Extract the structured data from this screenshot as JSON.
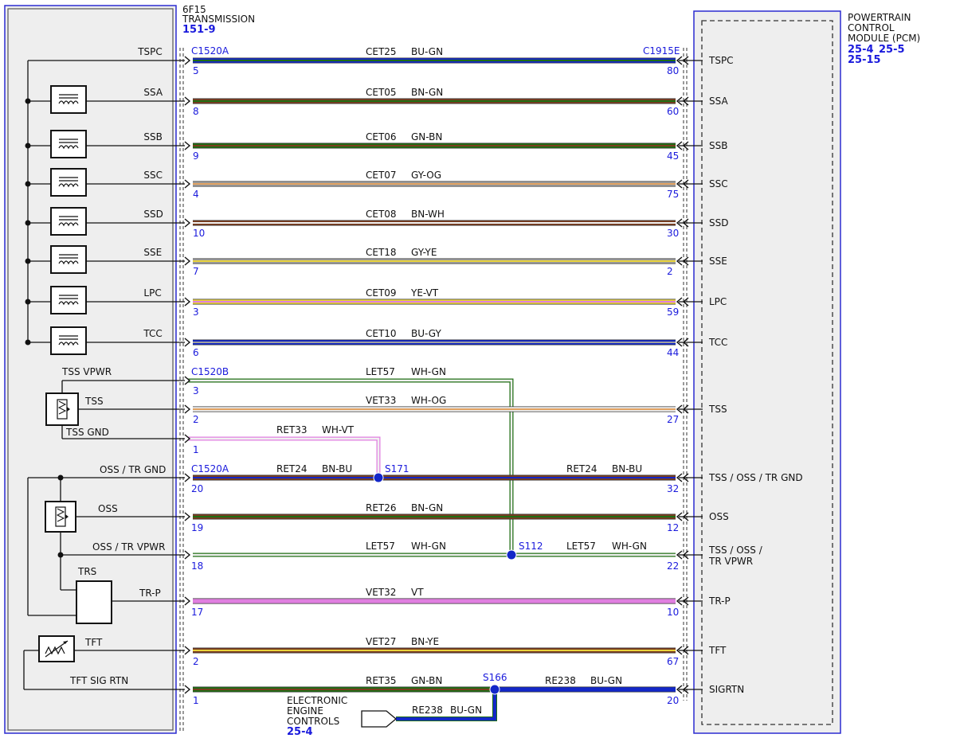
{
  "transmission": {
    "title": "6F15",
    "subtitle": "TRANSMISSION",
    "ref": "151-9"
  },
  "pcm": {
    "lines": [
      "POWERTRAIN",
      "CONTROL",
      "MODULE (PCM)"
    ],
    "refs": [
      "25-4",
      "25-5",
      "25-15"
    ]
  },
  "connectors": {
    "c1": "C1520A",
    "c2": "C1915E",
    "c3": "C1520B",
    "c4": "C1520A"
  },
  "colors": {
    "BU": "#1327c8",
    "BN": "#7a3d1f",
    "GN": "#1f6e13",
    "GY": "#a0a0a0",
    "OG": "#e0a060",
    "WH": "#f0f0f0",
    "YE": "#e8d23a",
    "VT": "#e07fe0",
    "RD": "#b02020",
    "blue_text": "#1a1adc"
  },
  "wires": [
    {
      "left_label": "TSPC",
      "circuit": "CET25",
      "color": "BU-GN",
      "pin_left": "5",
      "pin_right": "80",
      "right_label": "TSPC"
    },
    {
      "left_label": "SSA",
      "circuit": "CET05",
      "color": "BN-GN",
      "pin_left": "8",
      "pin_right": "60",
      "right_label": "SSA"
    },
    {
      "left_label": "SSB",
      "circuit": "CET06",
      "color": "GN-BN",
      "pin_left": "9",
      "pin_right": "45",
      "right_label": "SSB"
    },
    {
      "left_label": "SSC",
      "circuit": "CET07",
      "color": "GY-OG",
      "pin_left": "4",
      "pin_right": "75",
      "right_label": "SSC"
    },
    {
      "left_label": "SSD",
      "circuit": "CET08",
      "color": "BN-WH",
      "pin_left": "10",
      "pin_right": "30",
      "right_label": "SSD"
    },
    {
      "left_label": "SSE",
      "circuit": "CET18",
      "color": "GY-YE",
      "pin_left": "7",
      "pin_right": "2",
      "right_label": "SSE"
    },
    {
      "left_label": "LPC",
      "circuit": "CET09",
      "color": "YE-VT",
      "pin_left": "3",
      "pin_right": "59",
      "right_label": "LPC"
    },
    {
      "left_label": "TCC",
      "circuit": "CET10",
      "color": "BU-GY",
      "pin_left": "6",
      "pin_right": "44",
      "right_label": "TCC"
    }
  ],
  "tss": {
    "vpwr_label": "TSS VPWR",
    "sensor_label": "TSS",
    "gnd_label": "TSS GND",
    "vpwr_circuit": "LET57",
    "vpwr_color": "WH-GN",
    "vpwr_pin": "3",
    "sig_circuit": "VET33",
    "sig_color": "WH-OG",
    "sig_pin_left": "2",
    "sig_pin_right": "27",
    "sig_right_label": "TSS",
    "gnd_circuit": "RET33",
    "gnd_color": "WH-VT",
    "gnd_pin": "1"
  },
  "oss": {
    "gnd_label": "OSS / TR GND",
    "gnd_circuit": "RET24",
    "gnd_color": "BN-BU",
    "gnd_pin_left": "20",
    "gnd_pin_right": "32",
    "splice1": "S171",
    "gnd_right_circuit": "RET24",
    "gnd_right_color": "BN-BU",
    "gnd_right_label": "TSS / OSS / TR GND",
    "sensor_label": "OSS",
    "sig_circuit": "RET26",
    "sig_color": "BN-GN",
    "sig_pin_left": "19",
    "sig_pin_right": "12",
    "sig_right_label": "OSS",
    "vpwr_label": "OSS / TR VPWR",
    "vpwr_circuit": "LET57",
    "vpwr_color": "WH-GN",
    "vpwr_pin_left": "18",
    "vpwr_pin_right": "22",
    "splice2": "S112",
    "vpwr_right_circuit": "LET57",
    "vpwr_right_color": "WH-GN",
    "vpwr_right_label_1": "TSS / OSS /",
    "vpwr_right_label_2": "TR VPWR"
  },
  "trs": {
    "label": "TRS",
    "pin_label": "TR-P",
    "circuit": "VET32",
    "color": "VT",
    "pin_left": "17",
    "pin_right": "10",
    "right_label": "TR-P"
  },
  "tft": {
    "label": "TFT",
    "circuit": "VET27",
    "color": "BN-YE",
    "pin_left": "2",
    "pin_right": "67",
    "right_label": "TFT"
  },
  "sigrtn": {
    "label": "TFT SIG RTN",
    "circuit": "RET35",
    "color": "GN-BN",
    "pin_left": "1",
    "pin_right": "20",
    "splice": "S166",
    "right_circuit": "RE238",
    "right_color": "BU-GN",
    "right_label": "SIGRTN",
    "branch_circuit": "RE238",
    "branch_color": "BU-GN"
  },
  "eec": {
    "lines": [
      "ELECTRONIC",
      "ENGINE",
      "CONTROLS"
    ],
    "ref": "25-4"
  }
}
